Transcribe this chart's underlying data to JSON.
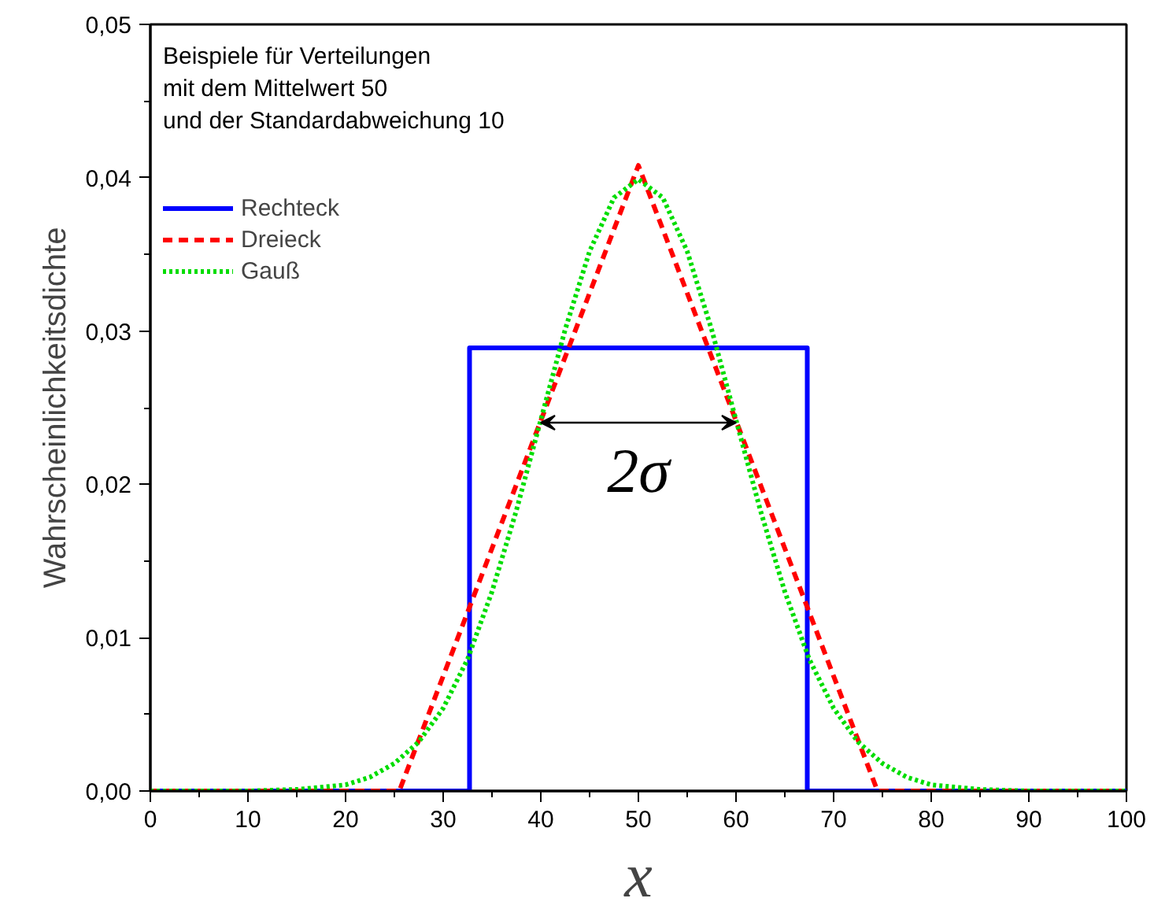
{
  "chart_data": {
    "type": "line",
    "xlabel": "x",
    "ylabel": "Wahrscheinlichkeitsdichte",
    "annotations": [
      "Beispiele für Verteilungen\nmit dem Mittelwert 50\nund der Standardabweichung 10",
      "2σ"
    ],
    "series": [
      {
        "name": "Rechteck",
        "color": "#0000ff",
        "line_style": "solid",
        "x": [
          0,
          32.7,
          32.7,
          67.3,
          67.3,
          100
        ],
        "values": [
          0,
          0,
          0.0289,
          0.0289,
          0,
          0
        ]
      },
      {
        "name": "Dreieck",
        "color": "#ff0000",
        "line_style": "dashed",
        "x": [
          0,
          25.5,
          50,
          74.5,
          100
        ],
        "values": [
          0,
          0,
          0.0408,
          0,
          0
        ]
      },
      {
        "name": "Gauß",
        "color": "#00dd00",
        "line_style": "dotted",
        "x": [
          0,
          10,
          15,
          20,
          22.5,
          25,
          27.5,
          30,
          32.5,
          35,
          37.5,
          40,
          42.5,
          45,
          47.5,
          50,
          52.5,
          55,
          57.5,
          60,
          62.5,
          65,
          67.5,
          70,
          72.5,
          75,
          77.5,
          80,
          85,
          90,
          100
        ],
        "values": [
          0,
          0,
          0.0001,
          0.0004,
          0.0009,
          0.0018,
          0.0032,
          0.0054,
          0.0086,
          0.013,
          0.0183,
          0.0242,
          0.0301,
          0.0352,
          0.0387,
          0.0399,
          0.0387,
          0.0352,
          0.0301,
          0.0242,
          0.0183,
          0.013,
          0.0086,
          0.0054,
          0.0032,
          0.0018,
          0.0009,
          0.0004,
          0.0001,
          0,
          0
        ]
      }
    ],
    "xlim": [
      0,
      100
    ],
    "ylim": [
      0,
      0.05
    ],
    "xticks": [
      0,
      {
        "value": 5,
        "label": null
      },
      10,
      {
        "value": 15,
        "label": null
      },
      20,
      {
        "value": 25,
        "label": null
      },
      30,
      {
        "value": 35,
        "label": null
      },
      40,
      {
        "value": 45,
        "label": null
      },
      50,
      {
        "value": 55,
        "label": null
      },
      60,
      {
        "value": 65,
        "label": null
      },
      70,
      {
        "value": 75,
        "label": null
      },
      80,
      {
        "value": 85,
        "label": null
      },
      90,
      {
        "value": 95,
        "label": null
      },
      100
    ],
    "yticks": [
      {
        "value": 0,
        "label": "0,00"
      },
      {
        "value": 0.005,
        "label": null
      },
      {
        "value": 0.01,
        "label": "0,01"
      },
      {
        "value": 0.015,
        "label": null
      },
      {
        "value": 0.02,
        "label": "0,02"
      },
      {
        "value": 0.025,
        "label": null
      },
      {
        "value": 0.03,
        "label": "0,03"
      },
      {
        "value": 0.035,
        "label": null
      },
      {
        "value": 0.04,
        "label": "0,04"
      },
      {
        "value": 0.045,
        "label": null
      },
      {
        "value": 0.05,
        "label": "0,05"
      }
    ],
    "grid": false,
    "legend": "top left",
    "marker": "none"
  }
}
